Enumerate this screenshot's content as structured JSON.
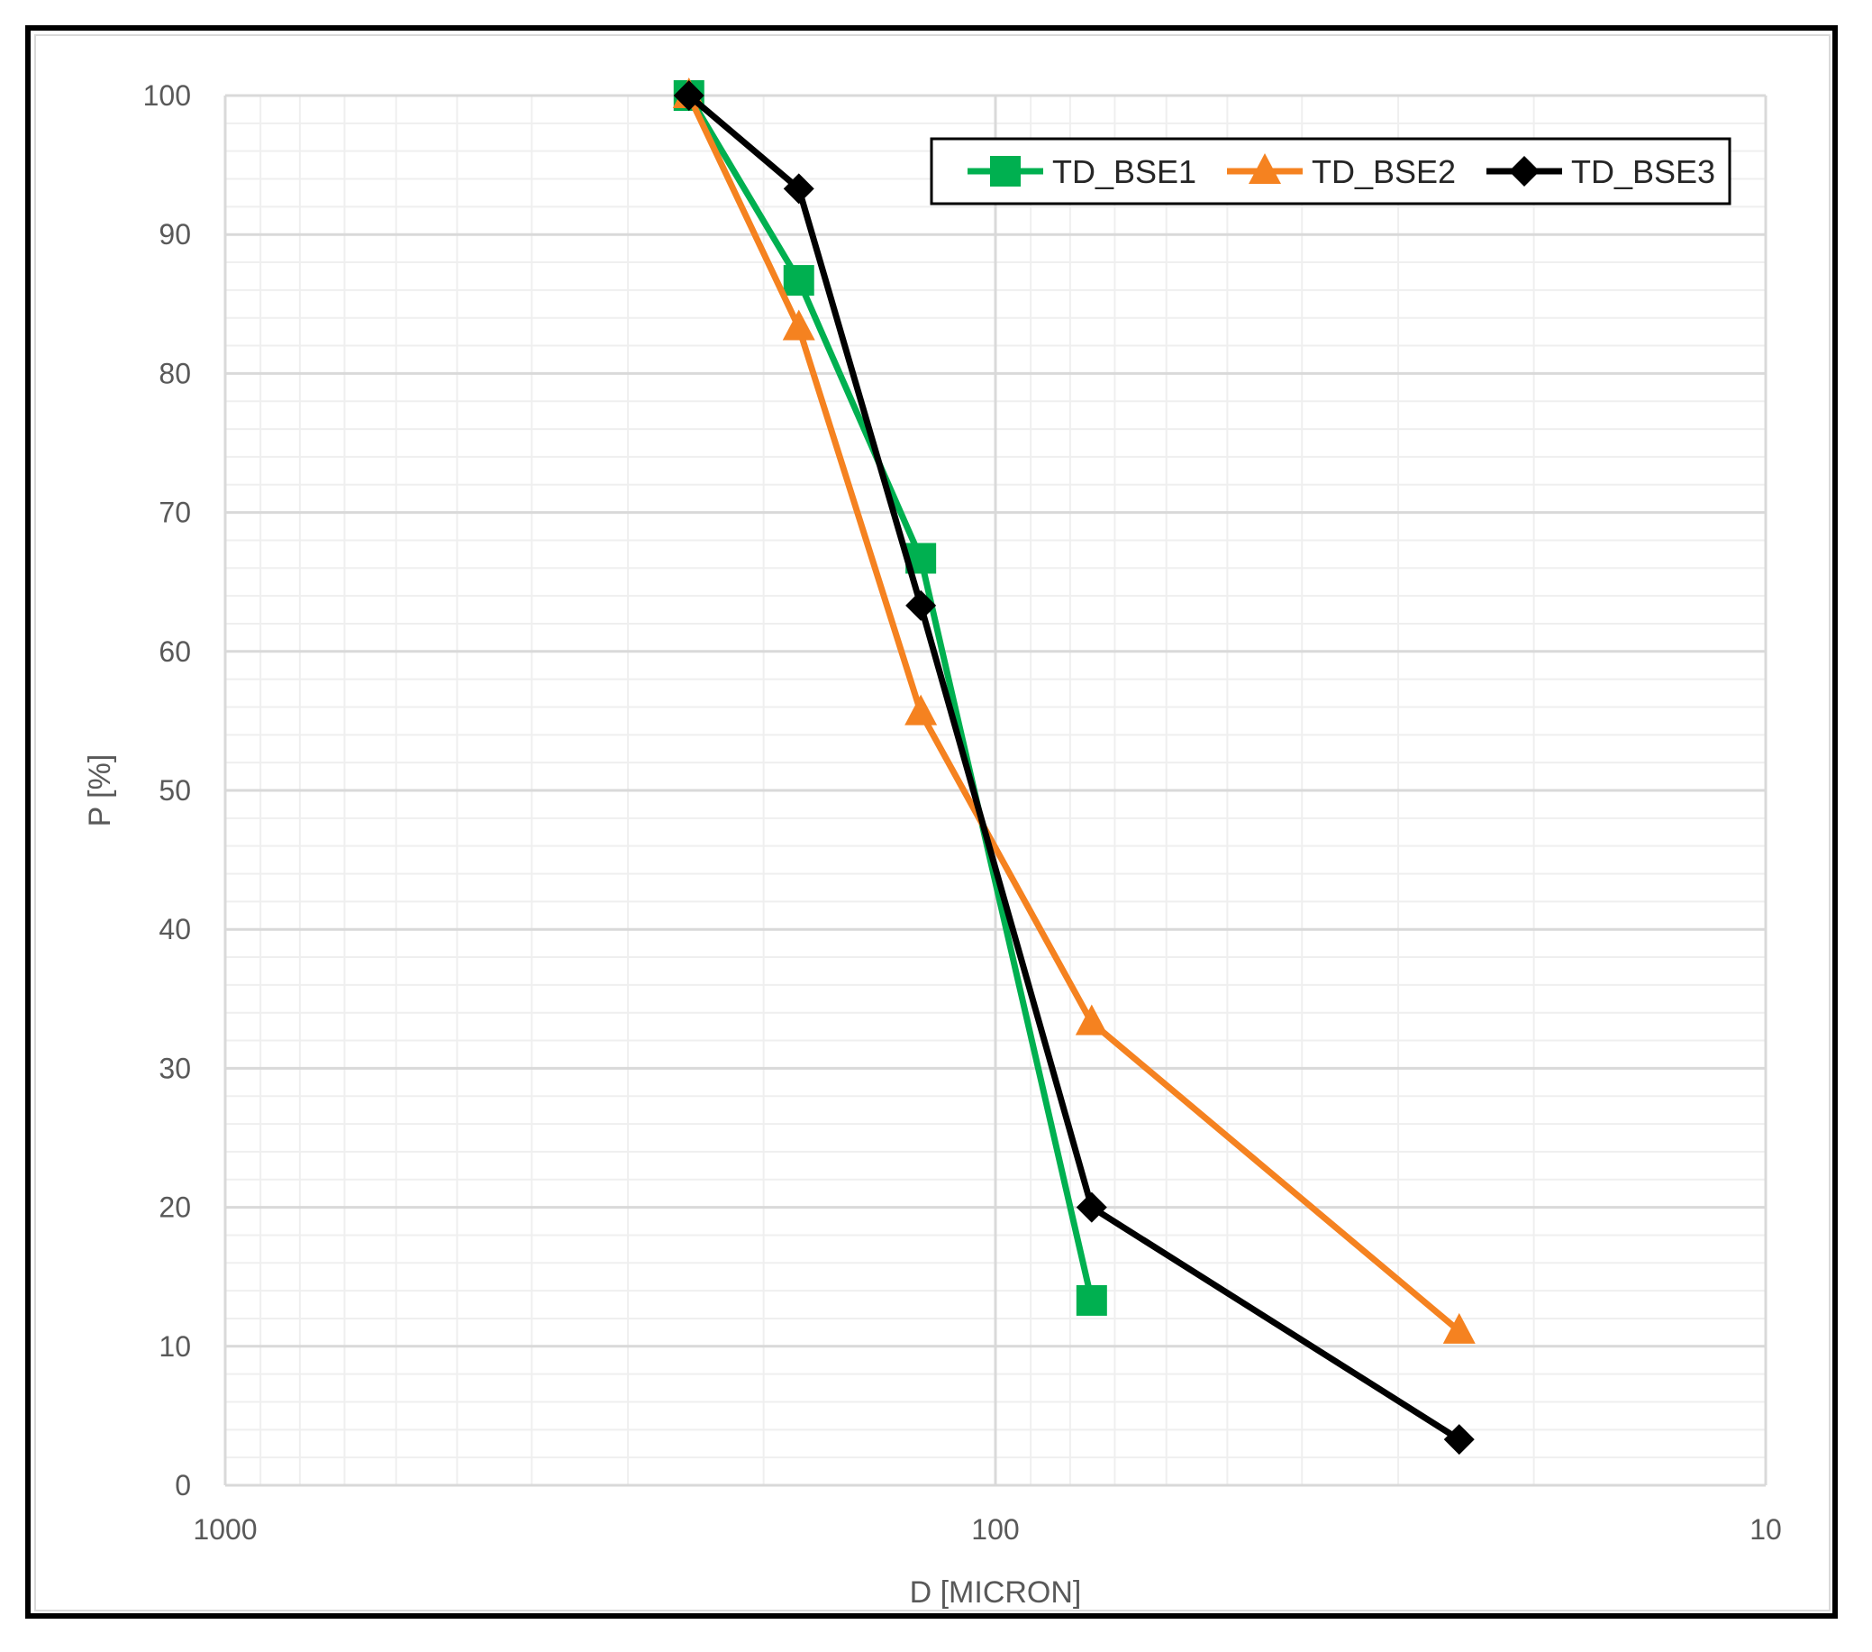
{
  "chart_data": {
    "type": "line",
    "title": "",
    "xlabel": "D [MICRON]",
    "ylabel": "P [%]",
    "x_scale": "log",
    "x_reversed": true,
    "xlim": [
      1000,
      10
    ],
    "ylim": [
      0,
      100
    ],
    "x_ticks": [
      {
        "value": 1000,
        "label": "1000"
      },
      {
        "value": 100,
        "label": "100"
      },
      {
        "value": 10,
        "label": "10"
      }
    ],
    "y_ticks": [
      {
        "value": 0,
        "label": "0"
      },
      {
        "value": 10,
        "label": "10"
      },
      {
        "value": 20,
        "label": "20"
      },
      {
        "value": 30,
        "label": "30"
      },
      {
        "value": 40,
        "label": "40"
      },
      {
        "value": 50,
        "label": "50"
      },
      {
        "value": 60,
        "label": "60"
      },
      {
        "value": 70,
        "label": "70"
      },
      {
        "value": 80,
        "label": "80"
      },
      {
        "value": 90,
        "label": "90"
      },
      {
        "value": 100,
        "label": "100"
      }
    ],
    "grid": true,
    "legend_position": "top-right",
    "series": [
      {
        "name": "TD_BSE1",
        "color": "#00b050",
        "marker": "square",
        "points": [
          {
            "x": 250,
            "y": 100
          },
          {
            "x": 180,
            "y": 86.7
          },
          {
            "x": 125,
            "y": 66.7
          },
          {
            "x": 75,
            "y": 13.3
          }
        ]
      },
      {
        "name": "TD_BSE2",
        "color": "#f58220",
        "marker": "triangle",
        "points": [
          {
            "x": 250,
            "y": 100
          },
          {
            "x": 180,
            "y": 83.3
          },
          {
            "x": 125,
            "y": 55.6
          },
          {
            "x": 75,
            "y": 33.3
          },
          {
            "x": 25,
            "y": 11.1
          }
        ]
      },
      {
        "name": "TD_BSE3",
        "color": "#000000",
        "marker": "diamond",
        "points": [
          {
            "x": 250,
            "y": 100
          },
          {
            "x": 180,
            "y": 93.3
          },
          {
            "x": 125,
            "y": 63.3
          },
          {
            "x": 75,
            "y": 20
          },
          {
            "x": 25,
            "y": 3.3
          }
        ]
      }
    ]
  }
}
